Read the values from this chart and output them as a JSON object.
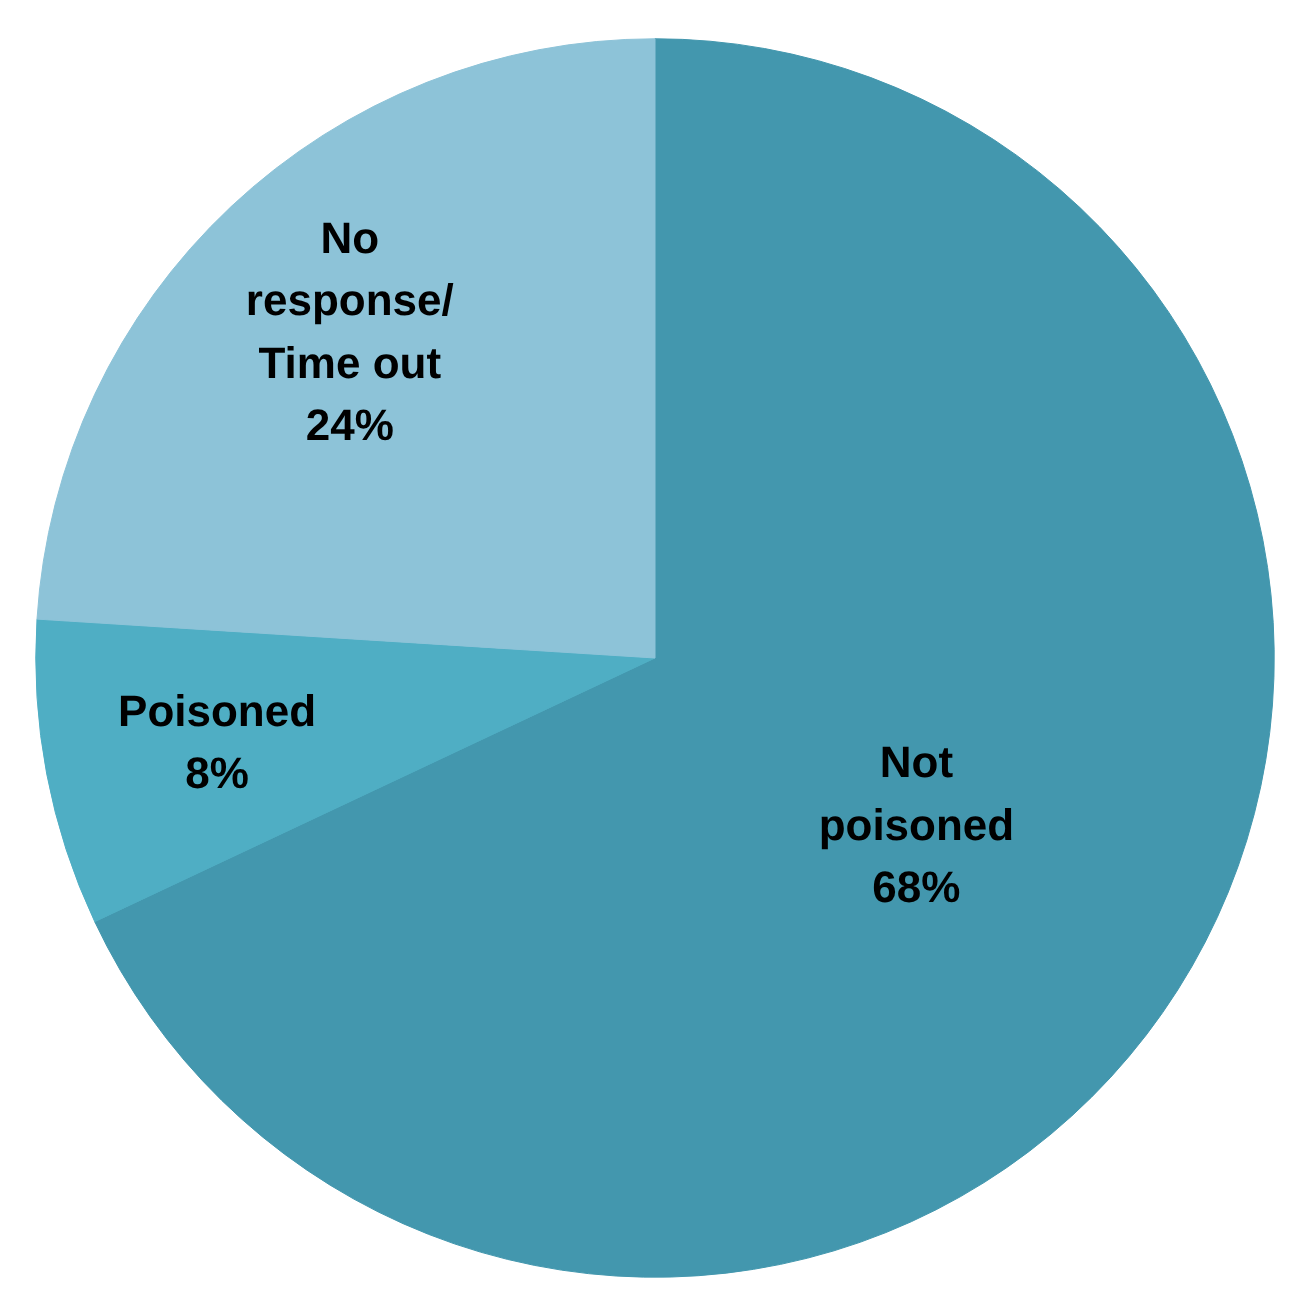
{
  "chart_data": {
    "type": "pie",
    "categories": [
      "Not poisoned",
      "Poisoned",
      "No response/Time out"
    ],
    "values": [
      68,
      8,
      24
    ],
    "colors": [
      "#4397ae",
      "#4faec4",
      "#8dc3d8"
    ],
    "value_labels": [
      "68%",
      "8%",
      "24%"
    ]
  }
}
